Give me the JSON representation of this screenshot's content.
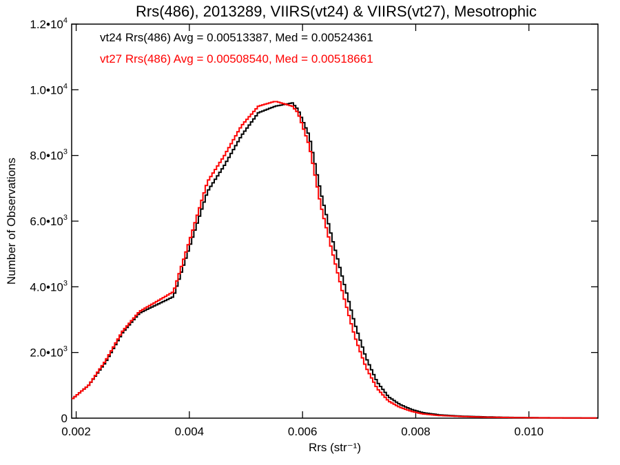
{
  "chart_data": {
    "type": "line",
    "title": "Rrs(486), 2013289, VIIRS(vt24) & VIIRS(vt27), Mesotrophic",
    "xlabel": "Rrs (str⁻¹)",
    "ylabel": "Number of Observations",
    "xlim": [
      0.00192,
      0.01122
    ],
    "ylim": [
      0,
      12000
    ],
    "x_ticks": [
      {
        "value": 0.002,
        "label": "0.002"
      },
      {
        "value": 0.004,
        "label": "0.004"
      },
      {
        "value": 0.006,
        "label": "0.006"
      },
      {
        "value": 0.008,
        "label": "0.008"
      },
      {
        "value": 0.01,
        "label": "0.010"
      }
    ],
    "y_ticks": [
      {
        "value": 0,
        "mantissa": "0",
        "exponent": ""
      },
      {
        "value": 2000,
        "mantissa": "2.0•10",
        "exponent": "3"
      },
      {
        "value": 4000,
        "mantissa": "4.0•10",
        "exponent": "3"
      },
      {
        "value": 6000,
        "mantissa": "6.0•10",
        "exponent": "3"
      },
      {
        "value": 8000,
        "mantissa": "8.0•10",
        "exponent": "3"
      },
      {
        "value": 10000,
        "mantissa": "1.0•10",
        "exponent": "4"
      },
      {
        "value": 12000,
        "mantissa": "1.2•10",
        "exponent": "4"
      }
    ],
    "legend_placement": "top-left",
    "series": [
      {
        "name": "vt24",
        "label": "vt24 Rrs(486) Avg = 0.00513387, Med = 0.00524361",
        "color": "#000000",
        "x": [
          0.00192,
          0.0022,
          0.0025,
          0.0028,
          0.0031,
          0.0034,
          0.0037,
          0.004,
          0.0043,
          0.0046,
          0.0049,
          0.0052,
          0.0055,
          0.0058,
          0.0059,
          0.0061,
          0.0063,
          0.0065,
          0.0067,
          0.0069,
          0.0071,
          0.0073,
          0.0075,
          0.0077,
          0.0079,
          0.0081,
          0.0084,
          0.0088,
          0.0092,
          0.0096,
          0.01,
          0.0105,
          0.01122
        ],
        "y": [
          600,
          1000,
          1700,
          2600,
          3200,
          3450,
          3700,
          5300,
          6900,
          7700,
          8600,
          9300,
          9500,
          9600,
          9400,
          8600,
          6900,
          5500,
          4200,
          2900,
          1850,
          1100,
          650,
          420,
          270,
          170,
          100,
          60,
          40,
          25,
          15,
          10,
          5
        ]
      },
      {
        "name": "vt27",
        "label": "vt27 Rrs(486) Avg = 0.00508540, Med = 0.00518661",
        "color": "#ff0000",
        "x": [
          0.00192,
          0.0022,
          0.0025,
          0.0028,
          0.0031,
          0.0034,
          0.0037,
          0.004,
          0.0043,
          0.0046,
          0.0049,
          0.0052,
          0.0055,
          0.0058,
          0.0059,
          0.0061,
          0.0063,
          0.0065,
          0.0067,
          0.0069,
          0.0071,
          0.0073,
          0.0075,
          0.0077,
          0.0079,
          0.0081,
          0.0084,
          0.0088,
          0.0092,
          0.0096,
          0.01,
          0.0105,
          0.01122
        ],
        "y": [
          600,
          1000,
          1750,
          2650,
          3250,
          3550,
          3850,
          5500,
          7200,
          8000,
          8900,
          9500,
          9650,
          9500,
          9300,
          8300,
          6500,
          5100,
          3750,
          2500,
          1550,
          900,
          520,
          330,
          210,
          130,
          80,
          50,
          30,
          20,
          12,
          8,
          4
        ]
      }
    ]
  }
}
